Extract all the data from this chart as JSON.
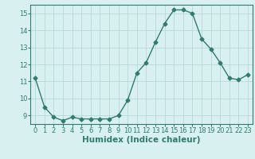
{
  "x": [
    0,
    1,
    2,
    3,
    4,
    5,
    6,
    7,
    8,
    9,
    10,
    11,
    12,
    13,
    14,
    15,
    16,
    17,
    18,
    19,
    20,
    21,
    22,
    23
  ],
  "y": [
    11.2,
    9.5,
    8.9,
    8.7,
    8.9,
    8.8,
    8.8,
    8.8,
    8.8,
    9.0,
    9.9,
    11.5,
    12.1,
    13.3,
    14.4,
    15.2,
    15.2,
    15.0,
    13.5,
    12.9,
    12.1,
    11.2,
    11.1,
    11.4
  ],
  "line_color": "#2e7d6e",
  "marker": "D",
  "marker_size": 2.5,
  "bg_color": "#d8f0f0",
  "grid_color": "#b8d8d8",
  "xlabel": "Humidex (Indice chaleur)",
  "xlim": [
    -0.5,
    23.5
  ],
  "ylim": [
    8.5,
    15.5
  ],
  "yticks": [
    9,
    10,
    11,
    12,
    13,
    14,
    15
  ],
  "xticks": [
    0,
    1,
    2,
    3,
    4,
    5,
    6,
    7,
    8,
    9,
    10,
    11,
    12,
    13,
    14,
    15,
    16,
    17,
    18,
    19,
    20,
    21,
    22,
    23
  ],
  "tick_fontsize": 6,
  "label_fontsize": 7.5,
  "linewidth": 1.0
}
